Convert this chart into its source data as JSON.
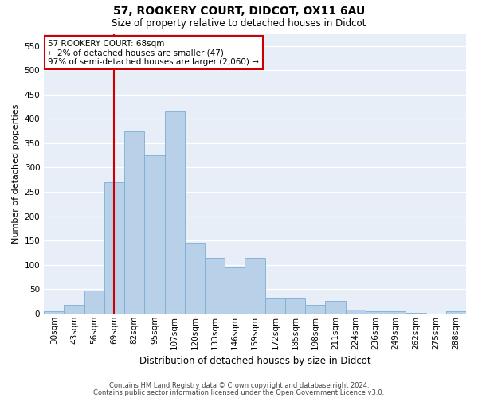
{
  "title1": "57, ROOKERY COURT, DIDCOT, OX11 6AU",
  "title2": "Size of property relative to detached houses in Didcot",
  "xlabel": "Distribution of detached houses by size in Didcot",
  "ylabel": "Number of detached properties",
  "footer1": "Contains HM Land Registry data © Crown copyright and database right 2024.",
  "footer2": "Contains public sector information licensed under the Open Government Licence v3.0.",
  "annotation_line1": "57 ROOKERY COURT: 68sqm",
  "annotation_line2": "← 2% of detached houses are smaller (47)",
  "annotation_line3": "97% of semi-detached houses are larger (2,060) →",
  "bar_color": "#b8d0e8",
  "bar_edge_color": "#7aafd4",
  "vline_color": "#cc0000",
  "annotation_box_color": "#cc0000",
  "background_color": "#e8eef8",
  "bin_labels": [
    "30sqm",
    "43sqm",
    "56sqm",
    "69sqm",
    "82sqm",
    "95sqm",
    "107sqm",
    "120sqm",
    "133sqm",
    "146sqm",
    "159sqm",
    "172sqm",
    "185sqm",
    "198sqm",
    "211sqm",
    "224sqm",
    "236sqm",
    "249sqm",
    "262sqm",
    "275sqm",
    "288sqm"
  ],
  "bar_heights": [
    4,
    18,
    47,
    270,
    375,
    325,
    415,
    145,
    115,
    95,
    115,
    30,
    30,
    18,
    25,
    8,
    5,
    4,
    1,
    0,
    4
  ],
  "vline_x_index": 3,
  "ylim": [
    0,
    575
  ],
  "yticks": [
    0,
    50,
    100,
    150,
    200,
    250,
    300,
    350,
    400,
    450,
    500,
    550
  ],
  "title1_fontsize": 10,
  "title2_fontsize": 8.5,
  "xlabel_fontsize": 8.5,
  "ylabel_fontsize": 8,
  "tick_fontsize": 7.5,
  "footer_fontsize": 6,
  "ann_fontsize": 7.5
}
